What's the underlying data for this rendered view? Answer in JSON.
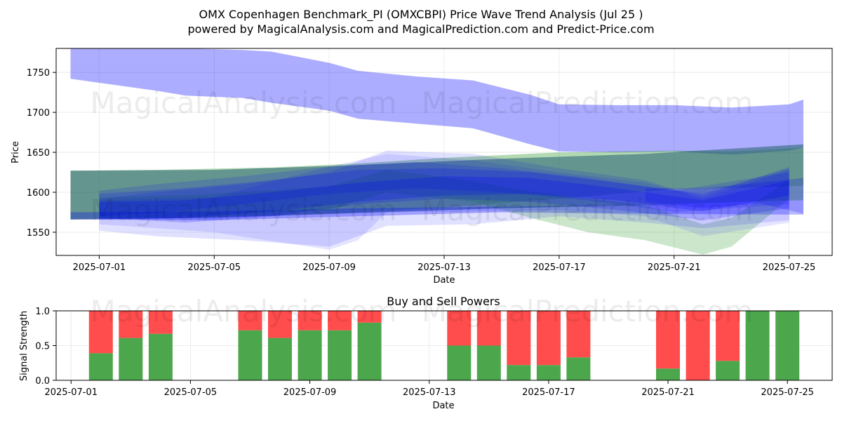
{
  "header": {
    "title": "OMX Copenhagen Benchmark_PI (OMXCBPI) Price Wave Trend Analysis (Jul 25 )",
    "subtitle": "powered by MagicalAnalysis.com and MagicalPrediction.com and Predict-Price.com"
  },
  "watermarks": [
    "MagicalAnalysis.com",
    "MagicalPrediction.com"
  ],
  "chart_data": [
    {
      "type": "area",
      "title": "",
      "xlabel": "Date",
      "ylabel": "Price",
      "xlim": [
        "2025-06-29T12:00",
        "2025-07-26T12:00"
      ],
      "ylim": [
        1521,
        1780
      ],
      "x_ticks": [
        "2025-07-01",
        "2025-07-05",
        "2025-07-09",
        "2025-07-13",
        "2025-07-17",
        "2025-07-21",
        "2025-07-25"
      ],
      "y_ticks": [
        1550,
        1600,
        1650,
        1700,
        1750
      ],
      "grid": true,
      "colors": {
        "blue": "#0000ff",
        "green": "#008000",
        "teal": "#306878"
      },
      "bands": [
        {
          "color": "blue",
          "opacity": 0.32,
          "x": [
            "2025-06-30T00:00",
            "2025-07-01T00:00",
            "2025-07-03T00:00",
            "2025-07-04T00:00",
            "2025-07-06T00:00",
            "2025-07-07T00:00",
            "2025-07-09T00:00",
            "2025-07-10T00:00",
            "2025-07-12T00:00",
            "2025-07-14T00:00",
            "2025-07-16T00:00",
            "2025-07-17T00:00",
            "2025-07-19T00:00",
            "2025-07-21T00:00",
            "2025-07-23T00:00",
            "2025-07-25T00:00",
            "2025-07-25T12:00"
          ],
          "upper": [
            1780,
            1780,
            1780,
            1780,
            1778,
            1776,
            1762,
            1752,
            1745,
            1740,
            1722,
            1710,
            1709,
            1709,
            1706,
            1710,
            1716
          ],
          "lower": [
            1742,
            1737,
            1727,
            1721,
            1718,
            1712,
            1702,
            1692,
            1686,
            1680,
            1660,
            1651,
            1650,
            1651,
            1647,
            1652,
            1656
          ]
        },
        {
          "color": "green",
          "opacity": 0.3,
          "x": [
            "2025-06-30T00:00",
            "2025-07-03T00:00",
            "2025-07-07T00:00",
            "2025-07-10T00:00",
            "2025-07-13T00:00",
            "2025-07-17T00:00",
            "2025-07-21T00:00",
            "2025-07-23T00:00",
            "2025-07-25T12:00"
          ],
          "upper": [
            1627,
            1628,
            1631,
            1636,
            1643,
            1650,
            1652,
            1651,
            1656
          ],
          "lower": [
            1566,
            1567,
            1571,
            1575,
            1581,
            1592,
            1604,
            1605,
            1608
          ]
        },
        {
          "color": "teal",
          "opacity": 0.6,
          "x": [
            "2025-06-30T00:00",
            "2025-07-05T00:00",
            "2025-07-10T00:00",
            "2025-07-15T00:00",
            "2025-07-20T00:00",
            "2025-07-25T12:00"
          ],
          "upper": [
            1627,
            1628,
            1634,
            1642,
            1648,
            1660
          ],
          "lower": [
            1566,
            1568,
            1574,
            1580,
            1584,
            1590
          ]
        },
        {
          "color": "blue",
          "opacity": 0.28,
          "x": [
            "2025-06-30T00:00",
            "2025-07-05T00:00",
            "2025-07-10T00:00",
            "2025-07-15T00:00",
            "2025-07-20T00:00",
            "2025-07-25T12:00"
          ],
          "upper": [
            1575,
            1576,
            1580,
            1582,
            1584,
            1590
          ],
          "lower": [
            1566,
            1565,
            1570,
            1575,
            1573,
            1572
          ]
        },
        {
          "color": "green",
          "opacity": 0.2,
          "x": [
            "2025-07-01T00:00",
            "2025-07-05T00:00",
            "2025-07-09T00:00",
            "2025-07-11T00:00",
            "2025-07-14T00:00",
            "2025-07-16T00:00",
            "2025-07-18T00:00",
            "2025-07-20T00:00",
            "2025-07-22T00:00",
            "2025-07-23T00:00",
            "2025-07-25T00:00"
          ],
          "upper": [
            1593,
            1598,
            1607,
            1628,
            1614,
            1601,
            1592,
            1584,
            1560,
            1568,
            1615
          ],
          "lower": [
            1568,
            1570,
            1578,
            1600,
            1588,
            1568,
            1550,
            1540,
            1522,
            1532,
            1592
          ]
        },
        {
          "color": "blue",
          "opacity": 0.12,
          "x": [
            "2025-07-01T00:00",
            "2025-07-03T00:00",
            "2025-07-06T00:00",
            "2025-07-09T00:00",
            "2025-07-11T00:00",
            "2025-07-14T00:00",
            "2025-07-17T00:00",
            "2025-07-20T00:00",
            "2025-07-22T00:00",
            "2025-07-25T00:00"
          ],
          "upper": [
            1592,
            1600,
            1610,
            1625,
            1652,
            1648,
            1630,
            1615,
            1592,
            1628
          ],
          "lower": [
            1552,
            1545,
            1540,
            1532,
            1558,
            1560,
            1570,
            1562,
            1555,
            1565
          ]
        },
        {
          "color": "blue",
          "opacity": 0.1,
          "x": [
            "2025-07-01T00:00",
            "2025-07-05T00:00",
            "2025-07-09T00:00",
            "2025-07-10T00:00",
            "2025-07-11T00:00",
            "2025-07-14T00:00",
            "2025-07-17T00:00",
            "2025-07-20T00:00",
            "2025-07-22T00:00",
            "2025-07-25T00:00"
          ],
          "upper": [
            1590,
            1594,
            1632,
            1640,
            1648,
            1640,
            1625,
            1612,
            1595,
            1632
          ],
          "lower": [
            1560,
            1550,
            1528,
            1540,
            1575,
            1576,
            1578,
            1570,
            1545,
            1562
          ]
        },
        {
          "color": "blue",
          "opacity": 0.18,
          "x": [
            "2025-07-01T00:00",
            "2025-07-04T00:00",
            "2025-07-07T00:00",
            "2025-07-10T00:00",
            "2025-07-13T00:00",
            "2025-07-16T00:00",
            "2025-07-19T00:00",
            "2025-07-22T00:00",
            "2025-07-25T00:00"
          ],
          "upper": [
            1598,
            1605,
            1615,
            1628,
            1630,
            1625,
            1612,
            1598,
            1630
          ],
          "lower": [
            1568,
            1562,
            1570,
            1585,
            1592,
            1588,
            1578,
            1565,
            1580
          ]
        },
        {
          "color": "blue",
          "opacity": 0.15,
          "x": [
            "2025-07-01T00:00",
            "2025-07-03T00:00",
            "2025-07-06T00:00",
            "2025-07-09T00:00",
            "2025-07-12T00:00",
            "2025-07-15T00:00",
            "2025-07-18T00:00",
            "2025-07-21T00:00",
            "2025-07-25T00:00"
          ],
          "upper": [
            1602,
            1610,
            1620,
            1632,
            1638,
            1630,
            1618,
            1602,
            1625
          ],
          "lower": [
            1570,
            1574,
            1585,
            1598,
            1605,
            1600,
            1590,
            1575,
            1585
          ]
        },
        {
          "color": "blue",
          "opacity": 0.22,
          "x": [
            "2025-07-01T00:00",
            "2025-07-04T00:00",
            "2025-07-07T00:00",
            "2025-07-10T00:00",
            "2025-07-13T00:00",
            "2025-07-16T00:00",
            "2025-07-19T00:00",
            "2025-07-22T00:00",
            "2025-07-25T00:00"
          ],
          "upper": [
            1588,
            1590,
            1600,
            1612,
            1620,
            1618,
            1605,
            1590,
            1615
          ],
          "lower": [
            1566,
            1568,
            1576,
            1588,
            1596,
            1598,
            1590,
            1576,
            1596
          ]
        },
        {
          "color": "blue",
          "opacity": 0.2,
          "x": [
            "2025-07-20T00:00",
            "2025-07-22T00:00",
            "2025-07-24T00:00",
            "2025-07-25T12:00"
          ],
          "upper": [
            1605,
            1605,
            1612,
            1618
          ],
          "lower": [
            1588,
            1580,
            1586,
            1573
          ]
        }
      ]
    },
    {
      "type": "bar",
      "title": "Buy and Sell Powers",
      "xlabel": "Date",
      "ylabel": "Signal Strength",
      "xlim": [
        "2025-06-30T12:00",
        "2025-07-26T12:00"
      ],
      "ylim": [
        0,
        1.0
      ],
      "x_ticks": [
        "2025-07-01",
        "2025-07-05",
        "2025-07-09",
        "2025-07-13",
        "2025-07-17",
        "2025-07-21",
        "2025-07-25"
      ],
      "y_ticks": [
        0.0,
        0.5,
        1.0
      ],
      "grid": true,
      "colors": {
        "buy": "#4ca64c",
        "sell": "#ff4c4c"
      },
      "series": [
        {
          "name": "Buy",
          "dates": [
            "2025-07-02",
            "2025-07-03",
            "2025-07-04",
            "2025-07-07",
            "2025-07-08",
            "2025-07-09",
            "2025-07-10",
            "2025-07-11",
            "2025-07-14",
            "2025-07-15",
            "2025-07-16",
            "2025-07-17",
            "2025-07-18",
            "2025-07-21",
            "2025-07-22",
            "2025-07-23",
            "2025-07-24",
            "2025-07-25"
          ],
          "values": [
            0.39,
            0.61,
            0.67,
            0.72,
            0.61,
            0.72,
            0.72,
            0.83,
            0.5,
            0.5,
            0.22,
            0.22,
            0.33,
            0.17,
            0.0,
            0.28,
            1.0,
            1.0
          ]
        },
        {
          "name": "Sell",
          "dates": [
            "2025-07-02",
            "2025-07-03",
            "2025-07-04",
            "2025-07-07",
            "2025-07-08",
            "2025-07-09",
            "2025-07-10",
            "2025-07-11",
            "2025-07-14",
            "2025-07-15",
            "2025-07-16",
            "2025-07-17",
            "2025-07-18",
            "2025-07-21",
            "2025-07-22",
            "2025-07-23",
            "2025-07-24",
            "2025-07-25"
          ],
          "values": [
            0.61,
            0.39,
            0.33,
            0.28,
            0.39,
            0.28,
            0.28,
            0.17,
            0.5,
            0.5,
            0.78,
            0.78,
            0.67,
            0.83,
            1.0,
            0.72,
            0.0,
            0.0
          ]
        }
      ]
    }
  ]
}
